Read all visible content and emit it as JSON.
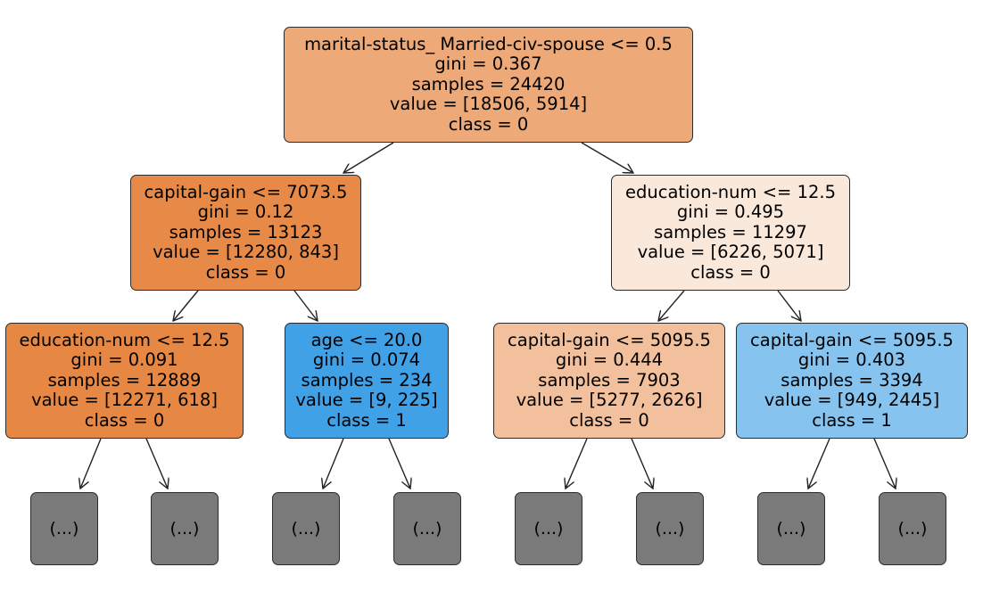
{
  "nodes": {
    "root": {
      "lines": [
        "marital-status_ Married-civ-spouse <= 0.5",
        "gini = 0.367",
        "samples = 24420",
        "value = [18506, 5914]",
        "class = 0"
      ],
      "fill": "#eda978"
    },
    "left": {
      "lines": [
        "capital-gain <= 7073.5",
        "gini = 0.12",
        "samples = 13123",
        "value = [12280, 843]",
        "class = 0"
      ],
      "fill": "#e78a47"
    },
    "right": {
      "lines": [
        "education-num <= 12.5",
        "gini = 0.495",
        "samples = 11297",
        "value = [6226, 5071]",
        "class = 0"
      ],
      "fill": "#fae8db"
    },
    "left_left": {
      "lines": [
        "education-num <= 12.5",
        "gini = 0.091",
        "samples = 12889",
        "value = [12271, 618]",
        "class = 0"
      ],
      "fill": "#e68743"
    },
    "left_right": {
      "lines": [
        "age <= 20.0",
        "gini = 0.074",
        "samples = 234",
        "value = [9, 225]",
        "class = 1"
      ],
      "fill": "#41a1e6"
    },
    "right_left": {
      "lines": [
        "capital-gain <= 5095.5",
        "gini = 0.444",
        "samples = 7903",
        "value = [5277, 2626]",
        "class = 0"
      ],
      "fill": "#f2c09c"
    },
    "right_right": {
      "lines": [
        "capital-gain <= 5095.5",
        "gini = 0.403",
        "samples = 3394",
        "value = [949, 2445]",
        "class = 1"
      ],
      "fill": "#86c3ef"
    }
  },
  "truncated_label": "(...)",
  "truncated_fill": "#7a7a7a"
}
